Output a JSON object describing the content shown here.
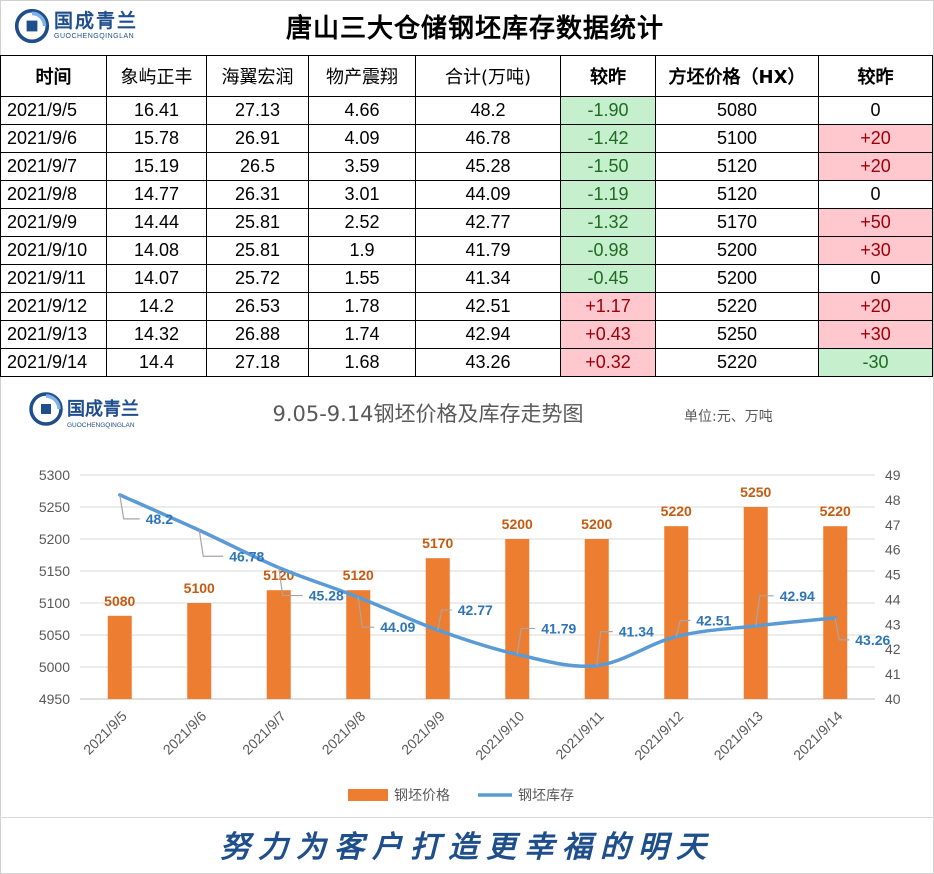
{
  "header": {
    "logo_cn": "国成青兰",
    "logo_en": "GUOCHENGQINGLAN",
    "title": "唐山三大仓储钢坯库存数据统计"
  },
  "table": {
    "columns": [
      "时间",
      "象屿正丰",
      "海翼宏润",
      "物产震翔",
      "合计(万吨)",
      "较昨",
      "方坯价格（HX）",
      "较昨"
    ],
    "rows": [
      {
        "date": "2021/9/5",
        "xy": "16.41",
        "hy": "27.13",
        "wc": "4.66",
        "total": "48.2",
        "chg": "-1.90",
        "price": "5080",
        "pchg": "0"
      },
      {
        "date": "2021/9/6",
        "xy": "15.78",
        "hy": "26.91",
        "wc": "4.09",
        "total": "46.78",
        "chg": "-1.42",
        "price": "5100",
        "pchg": "+20"
      },
      {
        "date": "2021/9/7",
        "xy": "15.19",
        "hy": "26.5",
        "wc": "3.59",
        "total": "45.28",
        "chg": "-1.50",
        "price": "5120",
        "pchg": "+20"
      },
      {
        "date": "2021/9/8",
        "xy": "14.77",
        "hy": "26.31",
        "wc": "3.01",
        "total": "44.09",
        "chg": "-1.19",
        "price": "5120",
        "pchg": "0"
      },
      {
        "date": "2021/9/9",
        "xy": "14.44",
        "hy": "25.81",
        "wc": "2.52",
        "total": "42.77",
        "chg": "-1.32",
        "price": "5170",
        "pchg": "+50"
      },
      {
        "date": "2021/9/10",
        "xy": "14.08",
        "hy": "25.81",
        "wc": "1.9",
        "total": "41.79",
        "chg": "-0.98",
        "price": "5200",
        "pchg": "+30"
      },
      {
        "date": "2021/9/11",
        "xy": "14.07",
        "hy": "25.72",
        "wc": "1.55",
        "total": "41.34",
        "chg": "-0.45",
        "price": "5200",
        "pchg": "0"
      },
      {
        "date": "2021/9/12",
        "xy": "14.2",
        "hy": "26.53",
        "wc": "1.78",
        "total": "42.51",
        "chg": "+1.17",
        "price": "5220",
        "pchg": "+20"
      },
      {
        "date": "2021/9/13",
        "xy": "14.32",
        "hy": "26.88",
        "wc": "1.74",
        "total": "42.94",
        "chg": "+0.43",
        "price": "5250",
        "pchg": "+30"
      },
      {
        "date": "2021/9/14",
        "xy": "14.4",
        "hy": "27.18",
        "wc": "1.68",
        "total": "43.26",
        "chg": "+0.32",
        "price": "5220",
        "pchg": "-30"
      }
    ]
  },
  "chart_data": {
    "type": "bar+line",
    "title": "9.05-9.14钢坯价格及库存走势图",
    "unit_note": "单位:元、万吨",
    "categories": [
      "2021/9/5",
      "2021/9/6",
      "2021/9/7",
      "2021/9/8",
      "2021/9/9",
      "2021/9/10",
      "2021/9/11",
      "2021/9/12",
      "2021/9/13",
      "2021/9/14"
    ],
    "series": [
      {
        "name": "钢坯价格",
        "type": "bar",
        "axis": "left",
        "color": "#ed7d31",
        "values": [
          5080,
          5100,
          5120,
          5120,
          5170,
          5200,
          5200,
          5220,
          5250,
          5220
        ]
      },
      {
        "name": "钢坯库存",
        "type": "line",
        "axis": "right",
        "color": "#5b9bd5",
        "values": [
          48.2,
          46.78,
          45.28,
          44.09,
          42.77,
          41.79,
          41.34,
          42.51,
          42.94,
          43.26
        ]
      }
    ],
    "left_axis": {
      "min": 4950,
      "max": 5300,
      "step": 50
    },
    "right_axis": {
      "min": 40,
      "max": 49,
      "step": 1
    },
    "legend_position": "bottom"
  },
  "footer": {
    "slogan": "努力为客户打造更幸福的明天"
  }
}
